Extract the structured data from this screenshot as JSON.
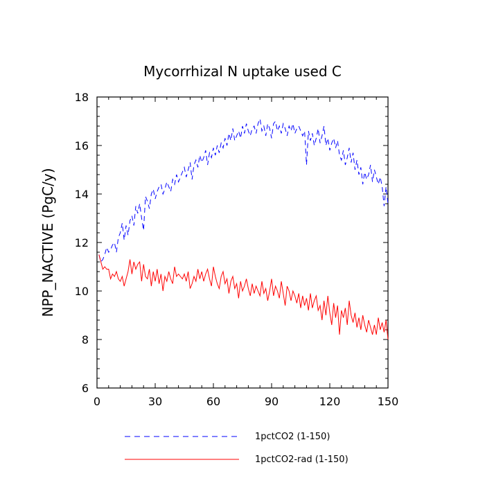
{
  "chart_data": {
    "type": "line",
    "title": "Mycorrhizal N uptake used C",
    "xlabel": "",
    "ylabel": "NPP_NACTIVE  (PgC/y)",
    "xlim": [
      0,
      150
    ],
    "ylim": [
      6,
      18
    ],
    "x_ticks": [
      0,
      30,
      60,
      90,
      120,
      150
    ],
    "y_ticks": [
      6,
      8,
      10,
      12,
      14,
      16,
      18
    ],
    "x_tick_labels": [
      "0",
      "30",
      "60",
      "90",
      "120",
      "150"
    ],
    "y_tick_labels": [
      "6",
      "8",
      "10",
      "12",
      "14",
      "16",
      "18"
    ],
    "grid": false,
    "legend_position": "bottom",
    "x": [
      1,
      2,
      3,
      4,
      5,
      6,
      7,
      8,
      9,
      10,
      11,
      12,
      13,
      14,
      15,
      16,
      17,
      18,
      19,
      20,
      21,
      22,
      23,
      24,
      25,
      26,
      27,
      28,
      29,
      30,
      31,
      32,
      33,
      34,
      35,
      36,
      37,
      38,
      39,
      40,
      41,
      42,
      43,
      44,
      45,
      46,
      47,
      48,
      49,
      50,
      51,
      52,
      53,
      54,
      55,
      56,
      57,
      58,
      59,
      60,
      61,
      62,
      63,
      64,
      65,
      66,
      67,
      68,
      69,
      70,
      71,
      72,
      73,
      74,
      75,
      76,
      77,
      78,
      79,
      80,
      81,
      82,
      83,
      84,
      85,
      86,
      87,
      88,
      89,
      90,
      91,
      92,
      93,
      94,
      95,
      96,
      97,
      98,
      99,
      100,
      101,
      102,
      103,
      104,
      105,
      106,
      107,
      108,
      109,
      110,
      111,
      112,
      113,
      114,
      115,
      116,
      117,
      118,
      119,
      120,
      121,
      122,
      123,
      124,
      125,
      126,
      127,
      128,
      129,
      130,
      131,
      132,
      133,
      134,
      135,
      136,
      137,
      138,
      139,
      140,
      141,
      142,
      143,
      144,
      145,
      146,
      147,
      148,
      149,
      150
    ],
    "series": [
      {
        "name": "1pctCO2 (1-150)",
        "color": "#0000ff",
        "dash": "dashed",
        "values": [
          11.5,
          11.2,
          11.3,
          11.5,
          11.8,
          11.6,
          11.7,
          11.9,
          12.0,
          11.6,
          12.2,
          12.4,
          12.8,
          12.1,
          12.7,
          12.3,
          12.9,
          13.1,
          12.7,
          13.5,
          13.2,
          13.6,
          13.0,
          12.5,
          13.9,
          13.7,
          13.4,
          14.0,
          14.2,
          13.8,
          14.1,
          14.3,
          14.4,
          14.0,
          14.2,
          14.5,
          14.3,
          14.1,
          14.6,
          14.4,
          14.8,
          14.5,
          14.7,
          14.9,
          15.1,
          14.7,
          15.0,
          15.3,
          14.6,
          15.2,
          15.4,
          15.1,
          15.6,
          15.3,
          15.5,
          15.8,
          15.2,
          15.7,
          15.5,
          15.9,
          15.6,
          16.0,
          15.7,
          16.1,
          15.9,
          16.3,
          16.0,
          16.5,
          16.2,
          16.7,
          16.2,
          16.4,
          16.6,
          16.3,
          16.8,
          16.5,
          16.9,
          16.6,
          16.4,
          16.7,
          16.8,
          16.5,
          16.9,
          17.1,
          16.6,
          16.8,
          16.4,
          16.9,
          16.7,
          16.3,
          16.9,
          17.0,
          16.6,
          16.8,
          16.5,
          16.9,
          16.7,
          16.4,
          16.8,
          16.6,
          16.9,
          16.5,
          16.7,
          16.8,
          16.6,
          16.4,
          16.6,
          15.2,
          16.6,
          16.2,
          16.5,
          16.0,
          16.3,
          16.7,
          16.1,
          16.4,
          16.8,
          16.0,
          16.3,
          15.8,
          16.1,
          16.3,
          15.9,
          16.2,
          15.6,
          15.4,
          15.8,
          15.2,
          15.5,
          15.9,
          15.3,
          15.7,
          15.0,
          15.4,
          14.8,
          15.1,
          14.4,
          14.9,
          14.6,
          14.8,
          15.2,
          14.5,
          15.0,
          14.7,
          14.4,
          14.7,
          14.3,
          13.5,
          14.3,
          13.6
        ]
      },
      {
        "name": "1pctCO2-rad (1-150)",
        "color": "#ff0000",
        "dash": "solid",
        "values": [
          11.5,
          11.2,
          10.9,
          11.0,
          10.9,
          10.9,
          10.5,
          10.7,
          10.6,
          10.8,
          10.5,
          10.4,
          10.6,
          10.2,
          10.5,
          10.8,
          11.3,
          10.7,
          11.2,
          10.9,
          11.1,
          11.2,
          10.4,
          11.1,
          10.6,
          10.5,
          10.9,
          10.2,
          10.8,
          10.4,
          10.9,
          10.3,
          10.7,
          10.0,
          10.6,
          10.4,
          10.8,
          10.5,
          10.3,
          11.0,
          10.6,
          10.7,
          10.6,
          10.5,
          10.7,
          10.4,
          10.8,
          10.1,
          10.3,
          10.6,
          10.4,
          10.9,
          10.5,
          10.8,
          10.4,
          10.7,
          10.9,
          10.5,
          10.2,
          11.0,
          10.6,
          10.3,
          10.1,
          10.6,
          10.8,
          10.3,
          10.5,
          9.9,
          10.4,
          10.6,
          10.1,
          10.3,
          9.7,
          10.4,
          10.0,
          10.2,
          10.5,
          10.1,
          9.8,
          10.3,
          9.9,
          10.2,
          10.0,
          9.8,
          10.4,
          9.9,
          10.1,
          9.6,
          10.0,
          10.5,
          9.8,
          10.2,
          10.0,
          9.7,
          10.4,
          9.9,
          9.4,
          10.2,
          10.0,
          9.6,
          10.0,
          9.8,
          9.5,
          9.9,
          9.3,
          9.8,
          9.4,
          9.7,
          9.2,
          9.9,
          9.3,
          9.6,
          9.8,
          9.2,
          9.4,
          8.8,
          9.6,
          9.0,
          9.8,
          9.1,
          8.6,
          9.5,
          8.9,
          9.4,
          8.2,
          9.2,
          8.9,
          9.3,
          8.6,
          9.6,
          9.0,
          8.7,
          9.1,
          8.5,
          8.9,
          8.4,
          9.0,
          8.6,
          8.3,
          8.8,
          8.5,
          8.2,
          8.6,
          8.2,
          8.9,
          8.4,
          8.7,
          8.3,
          8.8,
          8.0
        ]
      }
    ]
  }
}
